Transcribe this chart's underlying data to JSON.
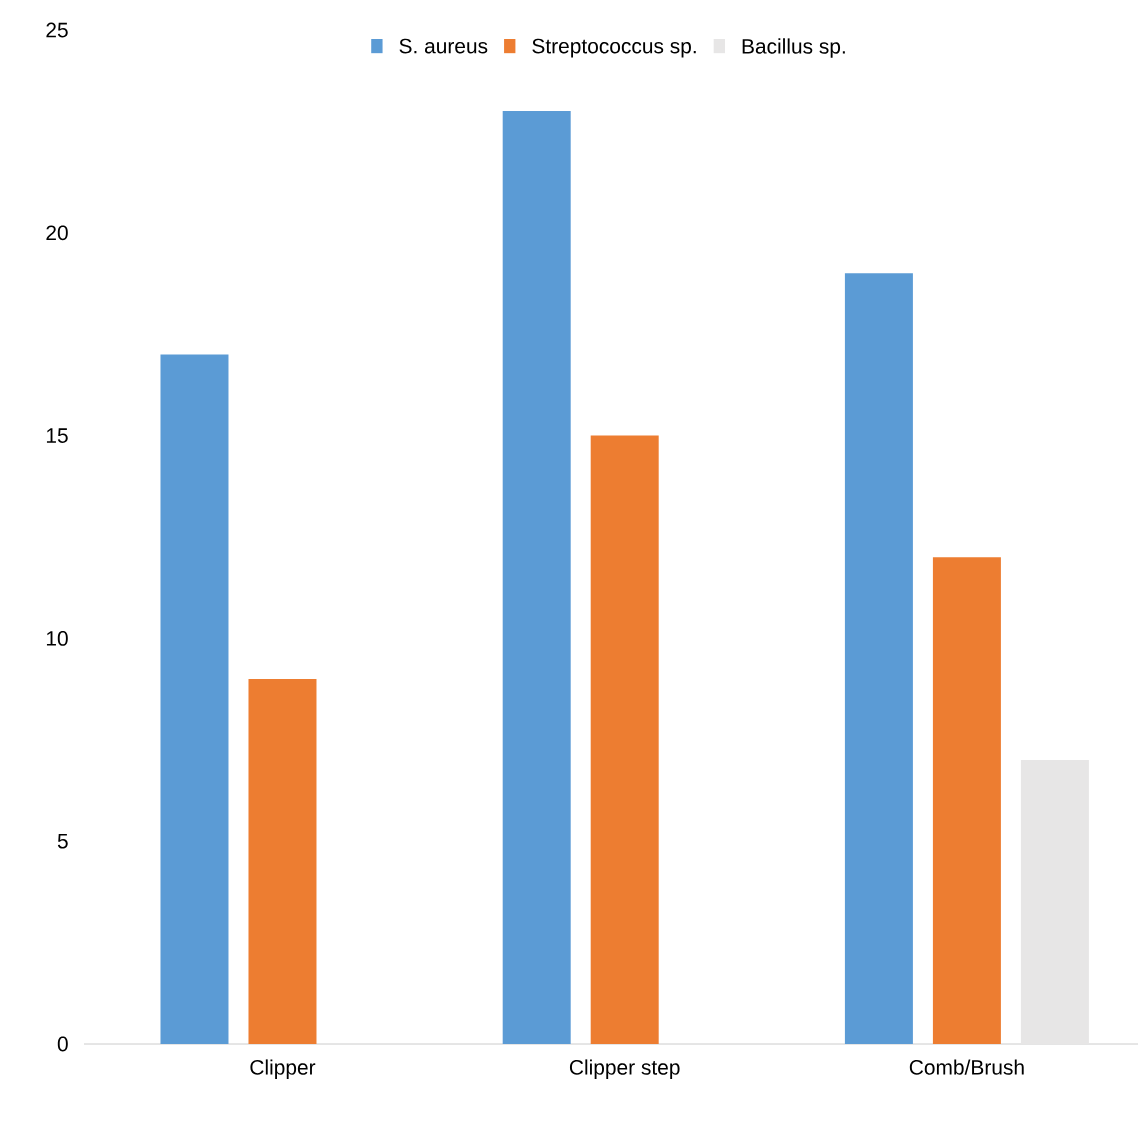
{
  "chart_data": {
    "type": "bar",
    "categories": [
      "Clipper",
      "Clipper step",
      "Comb/Brush"
    ],
    "series": [
      {
        "name": "S. aureus",
        "color": "#5b9bd5",
        "values": [
          17,
          23,
          19
        ]
      },
      {
        "name": "Streptococcus sp.",
        "color": "#ed7d31",
        "values": [
          9,
          15,
          12
        ]
      },
      {
        "name": "Bacillus sp.",
        "color": "#e7e6e6",
        "values": [
          null,
          null,
          7
        ]
      }
    ],
    "ylim": [
      0,
      25
    ],
    "yticks": [
      0,
      5,
      10,
      15,
      20,
      25
    ],
    "grid": false,
    "legend": "top"
  }
}
